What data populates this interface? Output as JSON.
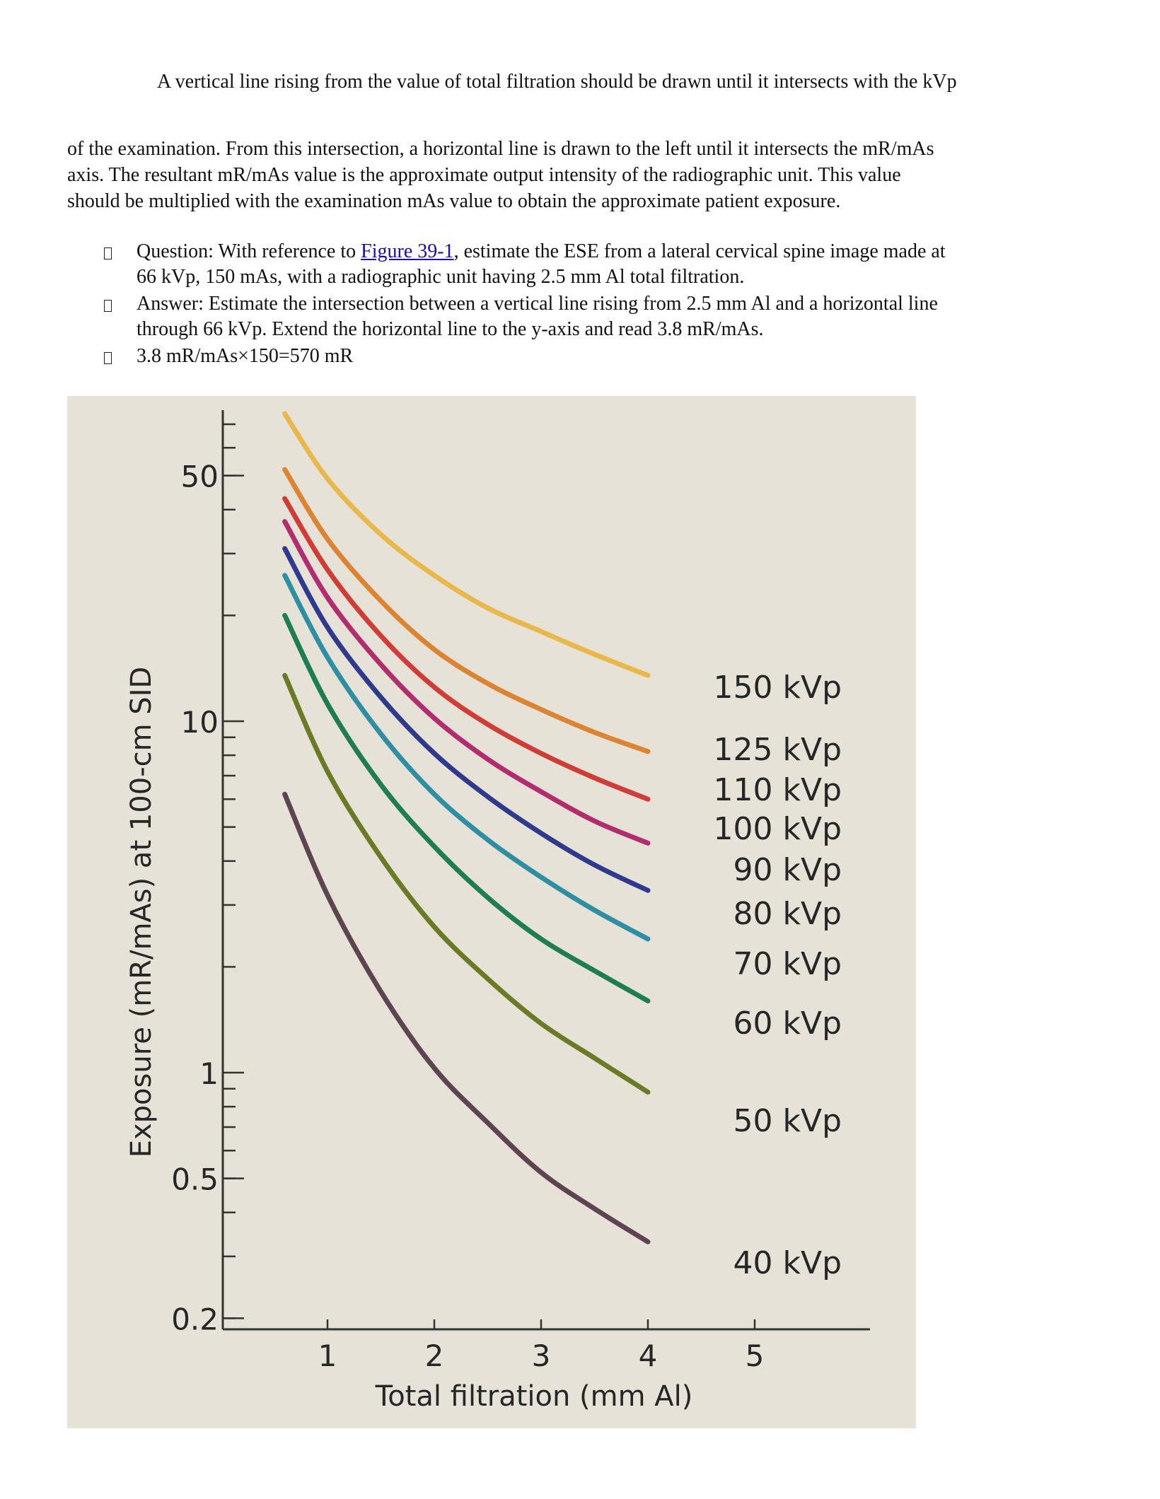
{
  "document": {
    "intro_line": "A vertical line rising from the value of total filtration should be drawn until it intersects with the kVp",
    "paragraph_lines": [
      "of the examination. From this intersection, a horizontal line is drawn to the left until it intersects the mR/mAs",
      "axis. The resultant mR/mAs value is the approximate output intensity of the radiographic unit. This value",
      "should be multiplied with the examination mAs value to obtain the approximate patient exposure."
    ],
    "question": {
      "prefix": "Question: With reference to ",
      "link_text": "Figure 39-1",
      "suffix": ", estimate the ESE from a lateral cervical spine image made at",
      "line2": "66 kVp, 150 mAs, with a radiographic unit having 2.5 mm Al total filtration."
    },
    "answer": {
      "line1": "Answer: Estimate the intersection between a vertical line rising from 2.5 mm Al and a horizontal line",
      "line2": "through 66 kVp. Extend the horizontal line to the y-axis and read 3.8 mR/mAs."
    },
    "calculation": "3.8 mR/mAs×150=570 mR"
  },
  "chart_data": {
    "type": "line",
    "title": "",
    "xlabel": "Total filtration (mm Al)",
    "ylabel": "Exposure (mR/mAs) at 100-cm SID",
    "x_ticks": [
      "1",
      "2",
      "3",
      "4",
      "5"
    ],
    "y_ticks": [
      "50",
      "10",
      "1",
      "0.5",
      "0.2"
    ],
    "y_scale": "log",
    "xlim": [
      0,
      5.5
    ],
    "ylim": [
      0.2,
      100
    ],
    "grid": false,
    "legend": "labels at right end of curves",
    "background": "#e6e2d8",
    "x": [
      0.6,
      1,
      1.5,
      2,
      2.5,
      3,
      3.5,
      4
    ],
    "series": [
      {
        "name": "150 kVp",
        "color": "#e8b84a",
        "values": [
          75,
          49,
          34,
          26,
          21,
          18,
          15.5,
          13.5
        ]
      },
      {
        "name": "125 kVp",
        "color": "#dd8433",
        "values": [
          52,
          33,
          22,
          16,
          12.8,
          10.8,
          9.3,
          8.2
        ]
      },
      {
        "name": "110 kVp",
        "color": "#d03d36",
        "values": [
          43,
          27,
          17.5,
          12.5,
          9.8,
          8.1,
          6.9,
          6.0
        ]
      },
      {
        "name": "100 kVp",
        "color": "#b22d6e",
        "values": [
          37,
          22.5,
          14.5,
          10.2,
          7.8,
          6.3,
          5.2,
          4.5
        ]
      },
      {
        "name": "90 kVp",
        "color": "#2f3a8c",
        "values": [
          31,
          18.5,
          11.7,
          8.1,
          6.1,
          4.8,
          3.9,
          3.3
        ]
      },
      {
        "name": "80 kVp",
        "color": "#2e8fa2",
        "values": [
          26,
          15.2,
          9.2,
          6.2,
          4.6,
          3.6,
          2.9,
          2.4
        ]
      },
      {
        "name": "70 kVp",
        "color": "#1e7d55",
        "values": [
          20,
          11.2,
          6.6,
          4.4,
          3.15,
          2.4,
          1.95,
          1.6
        ]
      },
      {
        "name": "60 kVp",
        "color": "#6b7a25",
        "values": [
          13.5,
          7.2,
          4.1,
          2.6,
          1.85,
          1.38,
          1.1,
          0.88
        ]
      },
      {
        "name": "40 kVp",
        "color": "#5e4350",
        "values": [
          6.2,
          3.2,
          1.7,
          1.03,
          0.72,
          0.52,
          0.41,
          0.33
        ]
      }
    ],
    "extra_legend_labels": [
      "50 kVp"
    ]
  }
}
